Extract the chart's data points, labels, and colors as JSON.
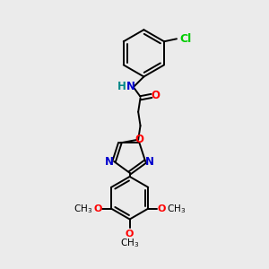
{
  "bg_color": "#ebebeb",
  "bond_color": "#000000",
  "N_color": "#0000cc",
  "O_color": "#ff0000",
  "Cl_color": "#00cc00",
  "NH_color": "#008888",
  "line_width": 1.4,
  "font_size": 8.5,
  "fig_width": 3.0,
  "fig_height": 3.0,
  "dpi": 100,
  "xlim": [
    0,
    10
  ],
  "ylim": [
    0,
    10
  ]
}
